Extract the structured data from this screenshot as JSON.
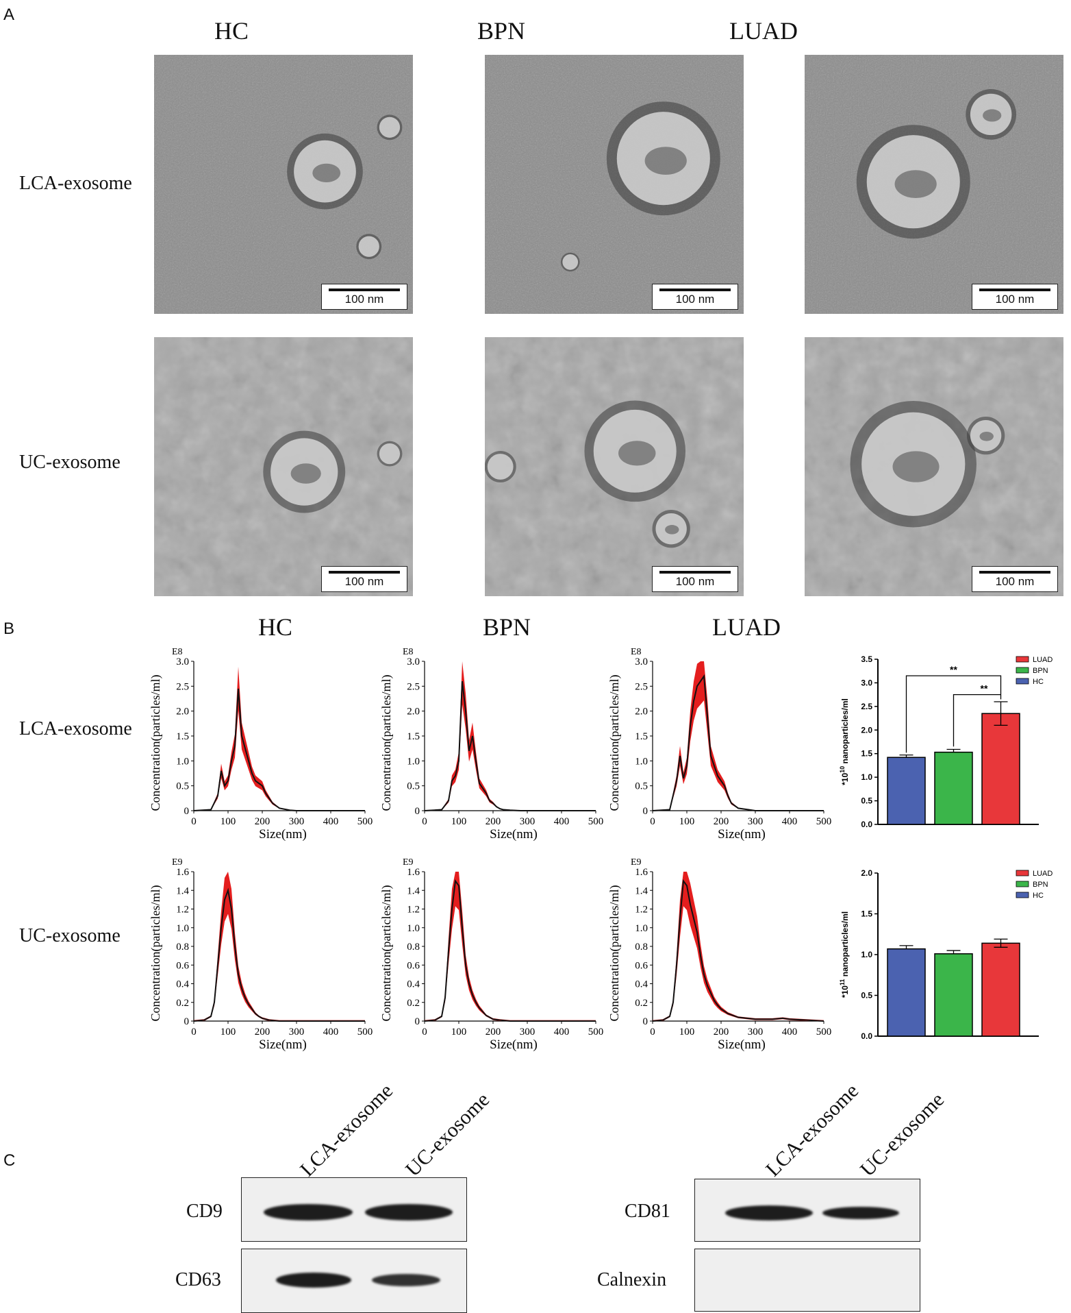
{
  "panels": {
    "a": "A",
    "b": "B",
    "c": "C"
  },
  "groups": [
    "HC",
    "BPN",
    "LUAD"
  ],
  "rows": [
    "LCA-exosome",
    "UC-exosome"
  ],
  "tem": {
    "scale_bar": "100 nm"
  },
  "nta": {
    "xlabel": "Size(nm)",
    "ylabel": "Concentration(particles/ml)",
    "x_ticks": [
      "0",
      "100",
      "200",
      "300",
      "400",
      "500"
    ],
    "lca_exponent": "E8",
    "uc_exponent": "E9",
    "lca_y_ticks": [
      "0",
      "0.5",
      "1.0",
      "1.5",
      "2.0",
      "2.5",
      "3.0"
    ],
    "uc_y_ticks": [
      "0",
      "0.2",
      "0.4",
      "0.6",
      "0.8",
      "1.0",
      "1.2",
      "1.4",
      "1.6"
    ]
  },
  "bars": {
    "legend": [
      "LUAD",
      "BPN",
      "HC"
    ],
    "lca_ylabel_prefix": "*10",
    "lca_ylabel_exp": "10",
    "lca_ylabel_suffix": " nanoparticles/ml",
    "uc_ylabel_prefix": "*10",
    "uc_ylabel_exp": "11",
    "uc_ylabel_suffix": " nanoparticles/ml",
    "significance": "**",
    "lca_y_ticks": [
      "0.0",
      "0.5",
      "1.0",
      "1.5",
      "2.0",
      "2.5",
      "3.0",
      "3.5"
    ],
    "uc_y_ticks": [
      "0.0",
      "0.5",
      "1.0",
      "1.5",
      "2.0"
    ]
  },
  "western": {
    "lanes": [
      "LCA-exosome",
      "UC-exosome"
    ],
    "left_markers": [
      "CD9",
      "CD63"
    ],
    "right_markers": [
      "CD81",
      "Calnexin"
    ]
  },
  "colors": {
    "LUAD": "#e8373a",
    "BPN": "#3bb54a",
    "HC": "#4b62b0",
    "nta_band": "#e41e1e"
  },
  "chart_data": [
    {
      "type": "line",
      "x": [
        0,
        50,
        70,
        80,
        90,
        100,
        110,
        120,
        130,
        140,
        150,
        160,
        170,
        180,
        190,
        200,
        210,
        220,
        230,
        250,
        280,
        300,
        500
      ],
      "y": [
        0,
        0.02,
        0.3,
        0.8,
        0.5,
        0.6,
        1.0,
        1.3,
        2.45,
        1.5,
        1.25,
        1.0,
        0.75,
        0.6,
        0.55,
        0.5,
        0.35,
        0.25,
        0.15,
        0.05,
        0.01,
        0,
        0
      ],
      "xlabel": "Size(nm)",
      "ylabel": "Concentration(particles/ml)",
      "xlim": [
        0,
        500
      ],
      "ylim": [
        0,
        3.0
      ],
      "title": "HC"
    },
    {
      "type": "line",
      "x": [
        0,
        50,
        70,
        80,
        90,
        100,
        110,
        120,
        130,
        140,
        150,
        160,
        170,
        180,
        190,
        200,
        210,
        220,
        230,
        250,
        280,
        300,
        500
      ],
      "y": [
        0,
        0.02,
        0.2,
        0.6,
        0.7,
        1.0,
        2.6,
        2.0,
        1.2,
        1.5,
        1.0,
        0.55,
        0.45,
        0.35,
        0.2,
        0.15,
        0.08,
        0.04,
        0.02,
        0.01,
        0,
        0,
        0
      ],
      "xlabel": "Size(nm)",
      "ylabel": "Concentration(particles/ml)",
      "xlim": [
        0,
        500
      ],
      "ylim": [
        0,
        3.0
      ],
      "title": "BPN"
    },
    {
      "type": "line",
      "x": [
        0,
        50,
        70,
        80,
        90,
        100,
        110,
        120,
        130,
        140,
        150,
        160,
        170,
        180,
        190,
        200,
        210,
        220,
        230,
        250,
        280,
        300,
        500
      ],
      "y": [
        0,
        0.02,
        0.6,
        1.1,
        0.65,
        0.9,
        1.7,
        2.2,
        2.5,
        2.6,
        2.7,
        1.9,
        1.1,
        0.9,
        0.7,
        0.6,
        0.5,
        0.3,
        0.15,
        0.05,
        0.02,
        0,
        0
      ],
      "xlabel": "Size(nm)",
      "ylabel": "Concentration(particles/ml)",
      "xlim": [
        0,
        500
      ],
      "ylim": [
        0,
        3.0
      ],
      "title": "LUAD"
    },
    {
      "type": "line",
      "x": [
        0,
        30,
        50,
        60,
        70,
        80,
        90,
        100,
        110,
        120,
        130,
        140,
        150,
        160,
        170,
        180,
        190,
        200,
        220,
        250,
        300,
        500
      ],
      "y": [
        0,
        0.01,
        0.05,
        0.2,
        0.6,
        1.0,
        1.3,
        1.4,
        1.2,
        0.8,
        0.5,
        0.35,
        0.25,
        0.18,
        0.13,
        0.08,
        0.05,
        0.03,
        0.01,
        0,
        0,
        0
      ],
      "xlabel": "Size(nm)",
      "ylabel": "Concentration(particles/ml)",
      "xlim": [
        0,
        500
      ],
      "ylim": [
        0,
        1.6
      ]
    },
    {
      "type": "line",
      "x": [
        0,
        30,
        50,
        60,
        70,
        80,
        90,
        100,
        110,
        120,
        130,
        140,
        150,
        160,
        170,
        180,
        190,
        200,
        220,
        250,
        300,
        500
      ],
      "y": [
        0,
        0.01,
        0.05,
        0.25,
        0.75,
        1.2,
        1.5,
        1.45,
        1.0,
        0.6,
        0.4,
        0.28,
        0.2,
        0.14,
        0.1,
        0.06,
        0.04,
        0.02,
        0.01,
        0,
        0,
        0
      ],
      "xlabel": "Size(nm)",
      "ylabel": "Concentration(particles/ml)",
      "xlim": [
        0,
        500
      ],
      "ylim": [
        0,
        1.6
      ]
    },
    {
      "type": "line",
      "x": [
        0,
        30,
        50,
        60,
        70,
        80,
        90,
        100,
        110,
        120,
        130,
        140,
        150,
        160,
        170,
        180,
        190,
        200,
        220,
        250,
        300,
        350,
        380,
        400,
        450,
        500
      ],
      "y": [
        0,
        0.01,
        0.05,
        0.2,
        0.6,
        1.1,
        1.5,
        1.45,
        1.25,
        1.1,
        0.95,
        0.7,
        0.5,
        0.38,
        0.3,
        0.22,
        0.17,
        0.13,
        0.08,
        0.04,
        0.02,
        0.02,
        0.03,
        0.02,
        0.01,
        0
      ],
      "xlabel": "Size(nm)",
      "ylabel": "Concentration(particles/ml)",
      "xlim": [
        0,
        500
      ],
      "ylim": [
        0,
        1.6
      ]
    },
    {
      "type": "bar",
      "categories": [
        "HC",
        "BPN",
        "LUAD"
      ],
      "values": [
        1.42,
        1.53,
        2.35
      ],
      "errors": [
        0.05,
        0.06,
        0.25
      ],
      "ylim": [
        0,
        3.5
      ]
    },
    {
      "type": "bar",
      "categories": [
        "HC",
        "BPN",
        "LUAD"
      ],
      "values": [
        1.07,
        1.01,
        1.14
      ],
      "errors": [
        0.04,
        0.04,
        0.05
      ],
      "ylim": [
        0,
        2.0
      ]
    }
  ]
}
